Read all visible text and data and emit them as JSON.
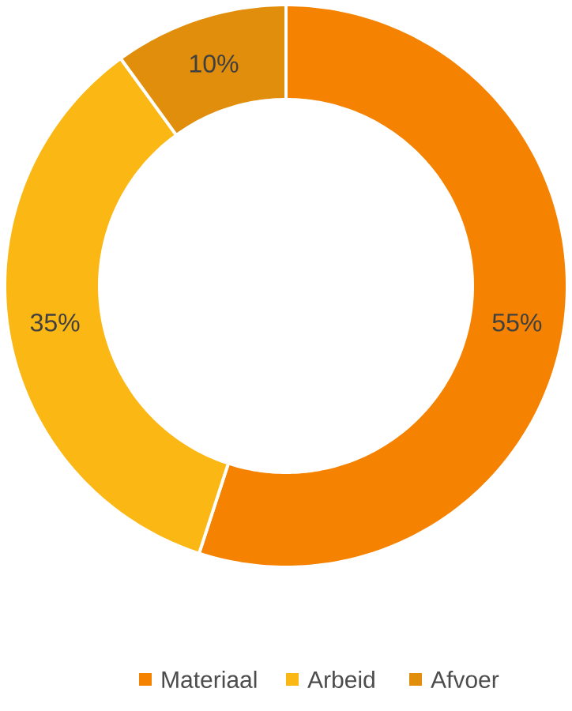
{
  "chart_data": {
    "type": "donut",
    "categories": [
      "Materiaal",
      "Arbeid",
      "Afvoer"
    ],
    "values": [
      55,
      35,
      10
    ],
    "colors": [
      "#f58200",
      "#fbb714",
      "#e08e0b"
    ],
    "value_labels": [
      "55%",
      "35%",
      "10%"
    ],
    "legend": "bottom"
  }
}
